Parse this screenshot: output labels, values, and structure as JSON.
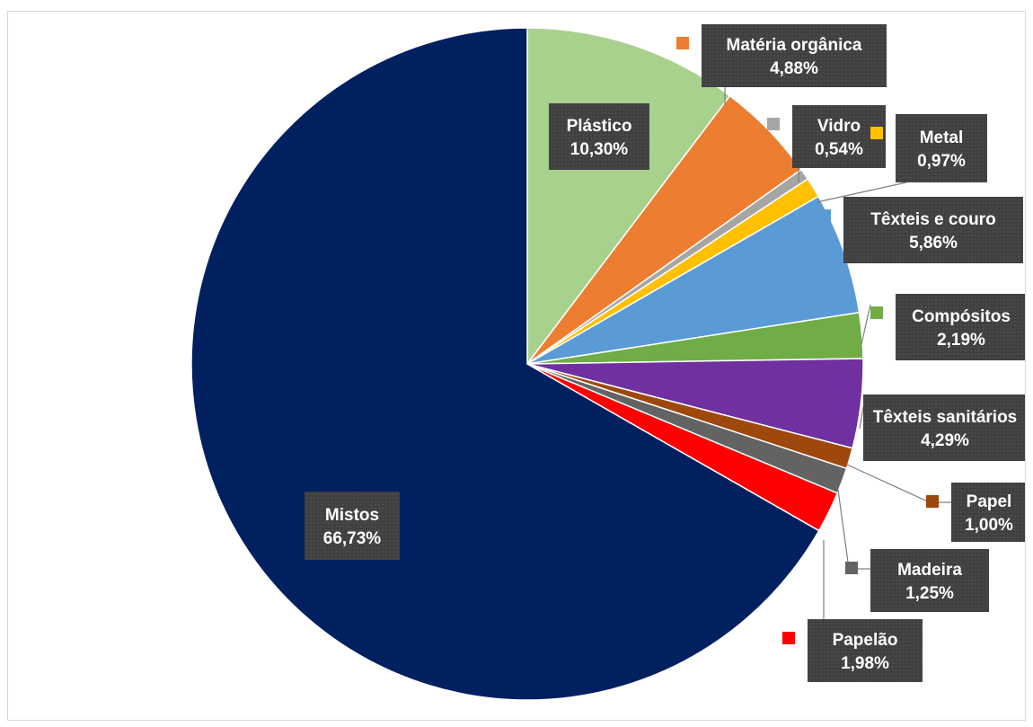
{
  "chart_data": {
    "type": "pie",
    "title": "",
    "slices": [
      {
        "name": "Plástico",
        "value": 10.3,
        "label": "10,30%",
        "color": "#a9d18e"
      },
      {
        "name": "Matéria orgânica",
        "value": 4.88,
        "label": "4,88%",
        "color": "#ed7d31"
      },
      {
        "name": "Vidro",
        "value": 0.54,
        "label": "0,54%",
        "color": "#a5a5a5"
      },
      {
        "name": "Metal",
        "value": 0.97,
        "label": "0,97%",
        "color": "#ffc000"
      },
      {
        "name": "Têxteis e couro",
        "value": 5.86,
        "label": "5,86%",
        "color": "#5b9bd5"
      },
      {
        "name": "Compósitos",
        "value": 2.19,
        "label": "2,19%",
        "color": "#70ad47"
      },
      {
        "name": "Têxteis sanitários",
        "value": 4.29,
        "label": "4,29%",
        "color": "#7030a0"
      },
      {
        "name": "Papel",
        "value": 1.0,
        "label": "1,00%",
        "color": "#9e480e"
      },
      {
        "name": "Madeira",
        "value": 1.25,
        "label": "1,25%",
        "color": "#636363"
      },
      {
        "name": "Papelão",
        "value": 1.98,
        "label": "1,98%",
        "color": "#ff0000"
      },
      {
        "name": "Mistos",
        "value": 66.73,
        "label": "66,73%",
        "color": "#002060"
      }
    ],
    "label_style": {
      "box_color": "#404040",
      "text_color": "#ffffff"
    }
  }
}
